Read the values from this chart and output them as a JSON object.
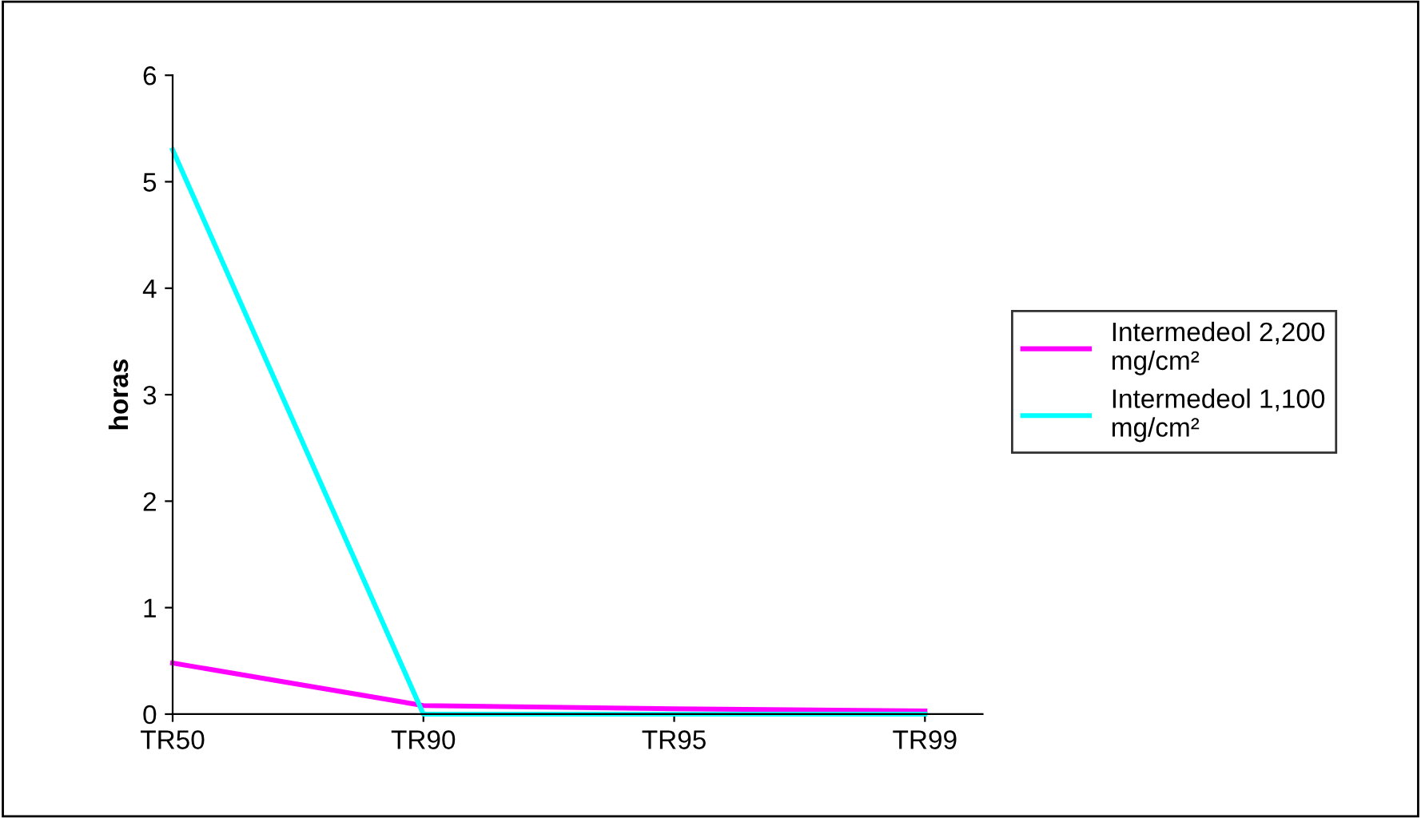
{
  "chart_data": {
    "type": "line",
    "ylabel": "horas",
    "categories": [
      "TR50",
      "TR90",
      "TR95",
      "TR99"
    ],
    "series": [
      {
        "name": "Intermedeol 2,200 mg/cm²",
        "color": "#ff00ff",
        "values": [
          0.48,
          0.08,
          0.05,
          0.03
        ]
      },
      {
        "name": "Intermedeol 1,100 mg/cm²",
        "color": "#00ffff",
        "values": [
          5.3,
          0,
          0,
          0
        ]
      }
    ],
    "ylim": [
      0,
      6
    ],
    "yticks": [
      0,
      1,
      2,
      3,
      4,
      5,
      6
    ],
    "grid": false,
    "legend": "right",
    "marker": "none",
    "line_style": "solid"
  }
}
